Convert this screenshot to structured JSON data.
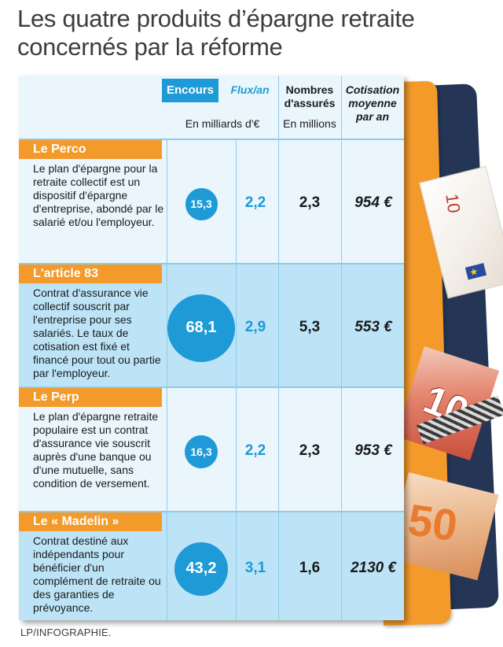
{
  "title": "Les quatre produits d’épargne retraite concernés par la réforme",
  "credit": "LP/INFOGRAPHIE.",
  "colors": {
    "accent_blue": "#1e9ad6",
    "accent_orange": "#f39a2a",
    "row_light": "#eaf6fc",
    "row_dark": "#bde4f6"
  },
  "decor": {
    "note10": "10",
    "note10b": "10",
    "note50": "50",
    "flag_icon": "eu-flag-icon"
  },
  "chart_data": {
    "type": "table",
    "columns": {
      "encours": "Encours",
      "flux": "Flux/an",
      "nombres": "Nombres d'assurés",
      "cotisation": "Cotisation moyenne par an",
      "unit_money": "En milliards d'€",
      "unit_people": "En millions"
    },
    "rows": [
      {
        "name": "Le Perco",
        "description": "Le plan d'épargne pour la retraite collectif est un dispositif d'épargne d'entreprise, abondé par le salarié et/ou l'employeur.",
        "encours": 15.3,
        "encours_label": "15,3",
        "flux": 2.2,
        "flux_label": "2,2",
        "assures": 2.3,
        "assures_label": "2,3",
        "cotisation": 954,
        "cotisation_label": "954 €"
      },
      {
        "name": "L'article 83",
        "description": "Contrat d'assurance vie collectif souscrit par l'entreprise pour ses salariés. Le taux de cotisation est fixé et financé pour tout ou partie par l'employeur.",
        "encours": 68.1,
        "encours_label": "68,1",
        "flux": 2.9,
        "flux_label": "2,9",
        "assures": 5.3,
        "assures_label": "5,3",
        "cotisation": 553,
        "cotisation_label": "553 €"
      },
      {
        "name": "Le Perp",
        "description": "Le plan d'épargne retraite populaire est un contrat d'assurance vie souscrit auprès d'une banque ou d'une mutuelle, sans condition de versement.",
        "encours": 16.3,
        "encours_label": "16,3",
        "flux": 2.2,
        "flux_label": "2,2",
        "assures": 2.3,
        "assures_label": "2,3",
        "cotisation": 953,
        "cotisation_label": "953 €"
      },
      {
        "name": "Le « Madelin »",
        "description": "Contrat destiné aux indépendants pour bénéficier d'un complément de retraite ou des garanties de prévoyance.",
        "encours": 43.2,
        "encours_label": "43,2",
        "flux": 3.1,
        "flux_label": "3,1",
        "assures": 1.6,
        "assures_label": "1,6",
        "cotisation": 2130,
        "cotisation_label": "2130 €"
      }
    ]
  }
}
